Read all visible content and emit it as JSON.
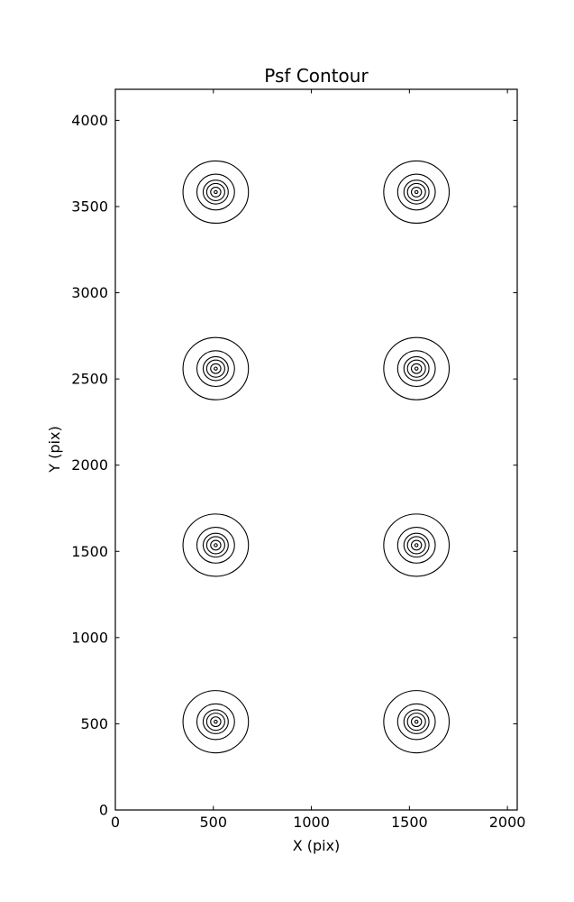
{
  "figure": {
    "background": "#ffffff",
    "line_color": "#000000"
  },
  "chart_data": {
    "type": "contour",
    "title": "Psf Contour",
    "xlabel": "X (pix)",
    "ylabel": "Y (pix)",
    "xlim": [
      0,
      2050
    ],
    "ylim": [
      0,
      4180
    ],
    "xticks": [
      0,
      500,
      1000,
      1500,
      2000
    ],
    "yticks": [
      0,
      500,
      1000,
      1500,
      2000,
      2500,
      3000,
      3500,
      4000
    ],
    "grid": false,
    "tick_direction": "in",
    "psf_centers": [
      {
        "x": 512,
        "y": 512
      },
      {
        "x": 1536,
        "y": 512
      },
      {
        "x": 512,
        "y": 1536
      },
      {
        "x": 1536,
        "y": 1536
      },
      {
        "x": 512,
        "y": 2560
      },
      {
        "x": 1536,
        "y": 2560
      },
      {
        "x": 512,
        "y": 3584
      },
      {
        "x": 1536,
        "y": 3584
      }
    ],
    "contour_ring_radii_data_units": [
      167,
      96,
      64,
      46,
      26,
      8
    ],
    "contour_aspect_ratio": 0.95,
    "line_color": "#000000",
    "background": "#ffffff"
  }
}
